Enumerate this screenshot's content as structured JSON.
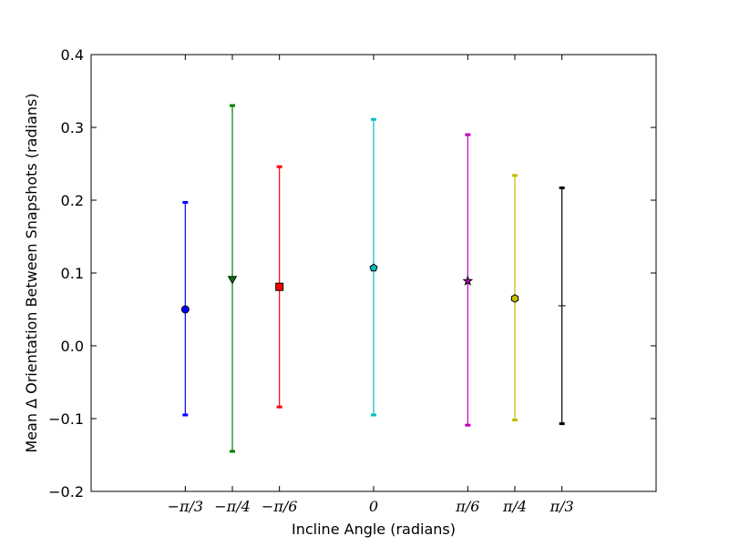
{
  "chart_data": {
    "type": "errorbar",
    "title": "",
    "xlabel": "Incline Angle (radians)",
    "ylabel": "Mean Δ Orientation Between Snapshots (radians)",
    "xlim": [
      -1.5708,
      1.5708
    ],
    "ylim": [
      -0.2,
      0.4
    ],
    "grid": false,
    "y_ticks": [
      {
        "value": -0.2,
        "label": "−0.2"
      },
      {
        "value": -0.1,
        "label": "−0.1"
      },
      {
        "value": 0.0,
        "label": "0.0"
      },
      {
        "value": 0.1,
        "label": "0.1"
      },
      {
        "value": 0.2,
        "label": "0.2"
      },
      {
        "value": 0.3,
        "label": "0.3"
      },
      {
        "value": 0.4,
        "label": "0.4"
      }
    ],
    "x_ticks": [
      {
        "value": -1.0472,
        "label": "−π/3"
      },
      {
        "value": -0.7854,
        "label": "−π/4"
      },
      {
        "value": -0.5236,
        "label": "−π/6"
      },
      {
        "value": 0.0,
        "label": "0"
      },
      {
        "value": 0.5236,
        "label": "π/6"
      },
      {
        "value": 0.7854,
        "label": "π/4"
      },
      {
        "value": 1.0472,
        "label": "π/3"
      }
    ],
    "points": [
      {
        "x": -1.0472,
        "y": 0.05,
        "lower": -0.095,
        "upper": 0.197,
        "color": "#0000ff",
        "marker": "circle"
      },
      {
        "x": -0.7854,
        "y": 0.092,
        "lower": -0.145,
        "upper": 0.33,
        "color": "#008000",
        "marker": "triangle-down"
      },
      {
        "x": -0.5236,
        "y": 0.081,
        "lower": -0.084,
        "upper": 0.246,
        "color": "#ff0000",
        "marker": "square"
      },
      {
        "x": 0.0,
        "y": 0.107,
        "lower": -0.095,
        "upper": 0.311,
        "color": "#00bfbf",
        "marker": "pentagon"
      },
      {
        "x": 0.5236,
        "y": 0.089,
        "lower": -0.109,
        "upper": 0.29,
        "color": "#bf00bf",
        "marker": "star"
      },
      {
        "x": 0.7854,
        "y": 0.065,
        "lower": -0.102,
        "upper": 0.234,
        "color": "#bfbf00",
        "marker": "hexagon"
      },
      {
        "x": 1.0472,
        "y": 0.055,
        "lower": -0.107,
        "upper": 0.217,
        "color": "#000000",
        "marker": "plus"
      }
    ]
  }
}
